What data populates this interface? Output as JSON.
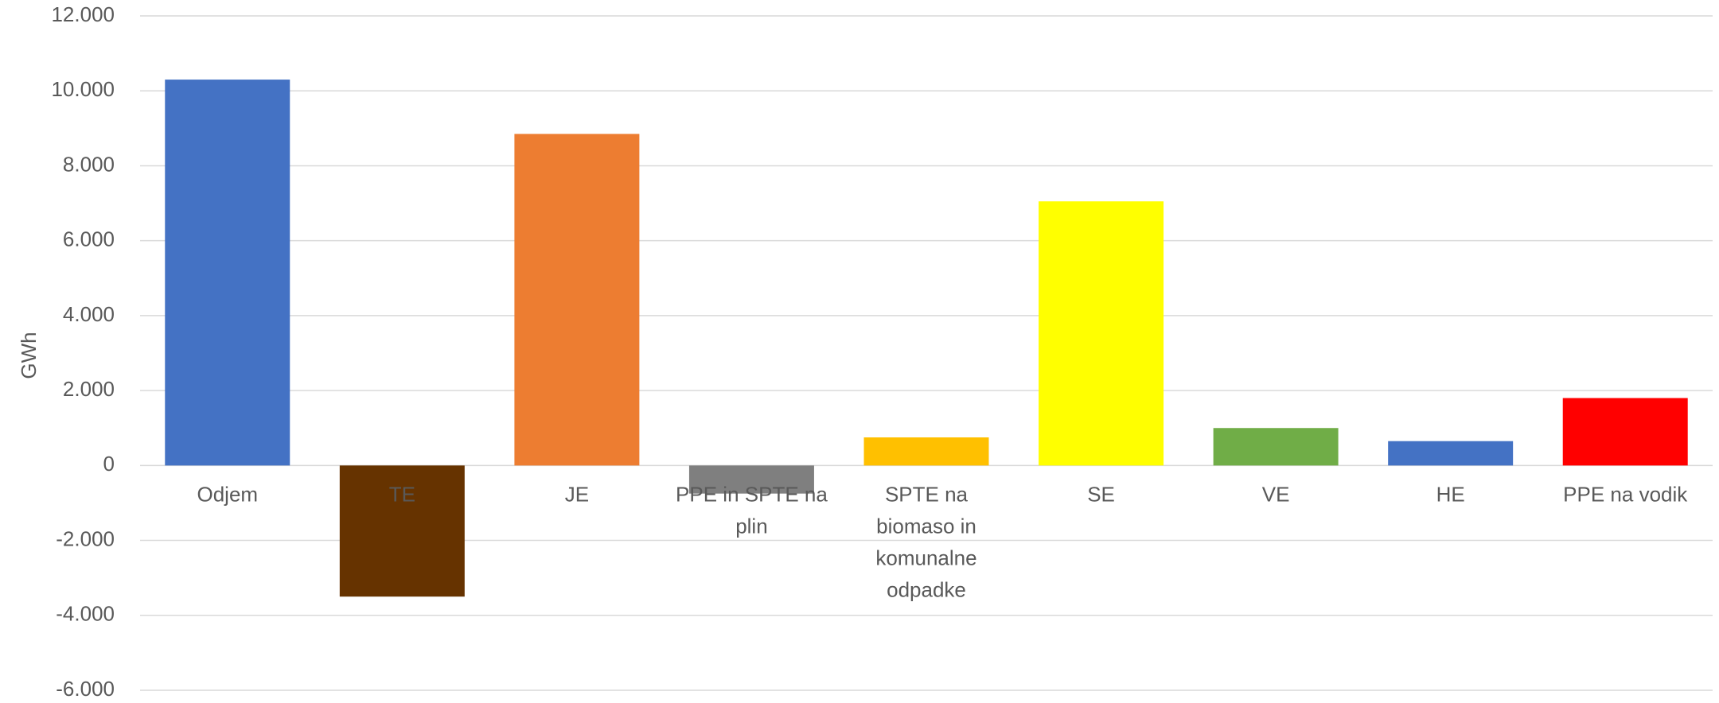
{
  "chart_data": {
    "type": "bar",
    "title": "",
    "xlabel": "",
    "ylabel": "GWh",
    "ylim": [
      -6000,
      12000
    ],
    "yticks": [
      12000,
      10000,
      8000,
      6000,
      4000,
      2000,
      0,
      -2000,
      -4000,
      -6000
    ],
    "ytick_labels": [
      "12.000",
      "10.000",
      "8.000",
      "6.000",
      "4.000",
      "2.000",
      "0",
      "-2.000",
      "-4.000",
      "-6.000"
    ],
    "grid": true,
    "legend": "none",
    "categories": [
      [
        "Odjem"
      ],
      [
        "TE"
      ],
      [
        "JE"
      ],
      [
        "PPE in SPTE na",
        "plin"
      ],
      [
        "SPTE na",
        "biomaso in",
        "komunalne",
        "odpadke"
      ],
      [
        "SE"
      ],
      [
        "VE"
      ],
      [
        "HE"
      ],
      [
        "PPE na vodik"
      ]
    ],
    "values": [
      10300,
      -3500,
      8850,
      -750,
      750,
      7050,
      1000,
      650,
      1800
    ],
    "colors": [
      "#4472c4",
      "#663300",
      "#ed7d31",
      "#7f7f7f",
      "#ffc000",
      "#ffff00",
      "#70ad47",
      "#4472c4",
      "#ff0000"
    ]
  }
}
